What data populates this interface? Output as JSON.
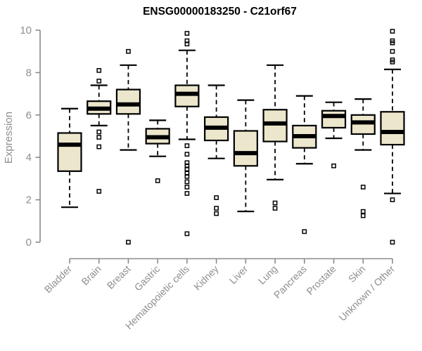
{
  "chart_data": {
    "type": "boxplot",
    "title": "ENSG00000183250 - C21orf67",
    "ylabel": "Expression",
    "xlabel": "",
    "ylim": [
      0,
      10
    ],
    "y_ticks": [
      0,
      2,
      4,
      6,
      8,
      10
    ],
    "grid": false,
    "legend": "none",
    "categories": [
      "Bladder",
      "Brain",
      "Breast",
      "Gastric",
      "Hematopoietic cells",
      "Kidney",
      "Liver",
      "Lung",
      "Pancreas",
      "Prostate",
      "Skin",
      "Unknown / Other"
    ],
    "boxes": [
      {
        "category": "Bladder",
        "whisker_low": 1.65,
        "q1": 3.35,
        "median": 4.6,
        "q3": 5.15,
        "whisker_high": 6.3,
        "outliers": []
      },
      {
        "category": "Brain",
        "whisker_low": 5.5,
        "q1": 6.05,
        "median": 6.3,
        "q3": 6.65,
        "whisker_high": 7.4,
        "outliers": [
          8.1,
          7.6,
          5.2,
          4.95,
          4.5,
          2.4
        ]
      },
      {
        "category": "Breast",
        "whisker_low": 4.35,
        "q1": 6.05,
        "median": 6.5,
        "q3": 7.2,
        "whisker_high": 8.35,
        "outliers": [
          9.0,
          0
        ]
      },
      {
        "category": "Gastric",
        "whisker_low": 4.05,
        "q1": 4.65,
        "median": 4.95,
        "q3": 5.35,
        "whisker_high": 5.75,
        "outliers": [
          2.9
        ]
      },
      {
        "category": "Hematopoietic cells",
        "whisker_low": 4.85,
        "q1": 6.4,
        "median": 7.0,
        "q3": 7.4,
        "whisker_high": 9.05,
        "outliers": [
          9.85,
          9.5,
          9.35,
          4.55,
          4.15,
          3.75,
          3.6,
          3.45,
          3.25,
          3.1,
          2.85,
          2.6,
          2.3,
          0.4
        ]
      },
      {
        "category": "Kidney",
        "whisker_low": 3.95,
        "q1": 4.8,
        "median": 5.4,
        "q3": 5.9,
        "whisker_high": 7.4,
        "outliers": [
          2.1,
          1.6,
          1.35
        ]
      },
      {
        "category": "Liver",
        "whisker_low": 1.45,
        "q1": 3.6,
        "median": 4.2,
        "q3": 5.25,
        "whisker_high": 6.7,
        "outliers": []
      },
      {
        "category": "Lung",
        "whisker_low": 2.95,
        "q1": 4.75,
        "median": 5.6,
        "q3": 6.25,
        "whisker_high": 8.35,
        "outliers": [
          1.85,
          1.6
        ]
      },
      {
        "category": "Pancreas",
        "whisker_low": 3.7,
        "q1": 4.45,
        "median": 5.0,
        "q3": 5.5,
        "whisker_high": 6.9,
        "outliers": [
          0.5
        ]
      },
      {
        "category": "Prostate",
        "whisker_low": 4.9,
        "q1": 5.4,
        "median": 5.95,
        "q3": 6.2,
        "whisker_high": 6.6,
        "outliers": [
          3.6
        ]
      },
      {
        "category": "Skin",
        "whisker_low": 4.35,
        "q1": 5.1,
        "median": 5.65,
        "q3": 6.0,
        "whisker_high": 6.75,
        "outliers": [
          2.6,
          1.45,
          1.25
        ]
      },
      {
        "category": "Unknown / Other",
        "whisker_low": 2.3,
        "q1": 4.6,
        "median": 5.2,
        "q3": 6.15,
        "whisker_high": 8.15,
        "outliers": [
          9.95,
          9.5,
          9.4,
          9.0,
          8.6,
          8.5,
          2.0,
          0
        ]
      }
    ]
  },
  "colors": {
    "background": "#ffffff",
    "box_fill": "#ece6cc",
    "box_border": "#000000",
    "median": "#000000",
    "axis": "#8a8a8a",
    "tick_text": "#8e8e8e",
    "title_text": "#000000"
  }
}
